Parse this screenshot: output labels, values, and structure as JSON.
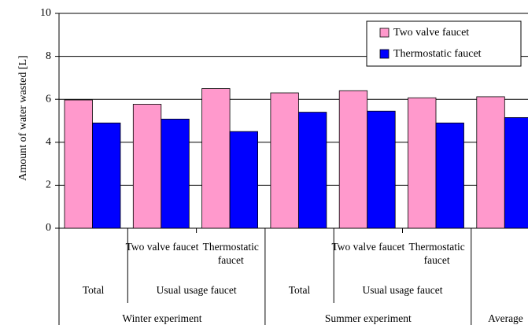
{
  "chart_data": {
    "type": "bar",
    "y_label": "Amount of water wasted [L]",
    "groups": [
      {
        "label": "Winter experiment",
        "subgroups": [
          {
            "label": "Total",
            "categories": [
              null
            ]
          },
          {
            "label": "Usual usage faucet",
            "categories": [
              "Two valve faucet",
              "Thermostatic faucet"
            ]
          }
        ]
      },
      {
        "label": "Summer experiment",
        "subgroups": [
          {
            "label": "Total",
            "categories": [
              null
            ]
          },
          {
            "label": "Usual usage faucet",
            "categories": [
              "Two valve faucet",
              "Thermostatic faucet"
            ]
          }
        ]
      },
      {
        "label": "Average",
        "subgroups": [
          {
            "label": null,
            "categories": [
              null
            ]
          }
        ]
      }
    ],
    "series": [
      {
        "name": "Two valve faucet",
        "color": "#ff99cc",
        "values": [
          5.97,
          5.77,
          6.5,
          6.3,
          6.4,
          6.07,
          6.12
        ]
      },
      {
        "name": "Thermostatic faucet",
        "color": "#0000ff",
        "values": [
          4.9,
          5.08,
          4.5,
          5.4,
          5.45,
          4.9,
          5.15
        ]
      }
    ],
    "ylim": [
      0,
      10
    ],
    "yticks": [
      0,
      2,
      4,
      6,
      8,
      10
    ],
    "grid": true,
    "legend": "upper right"
  }
}
